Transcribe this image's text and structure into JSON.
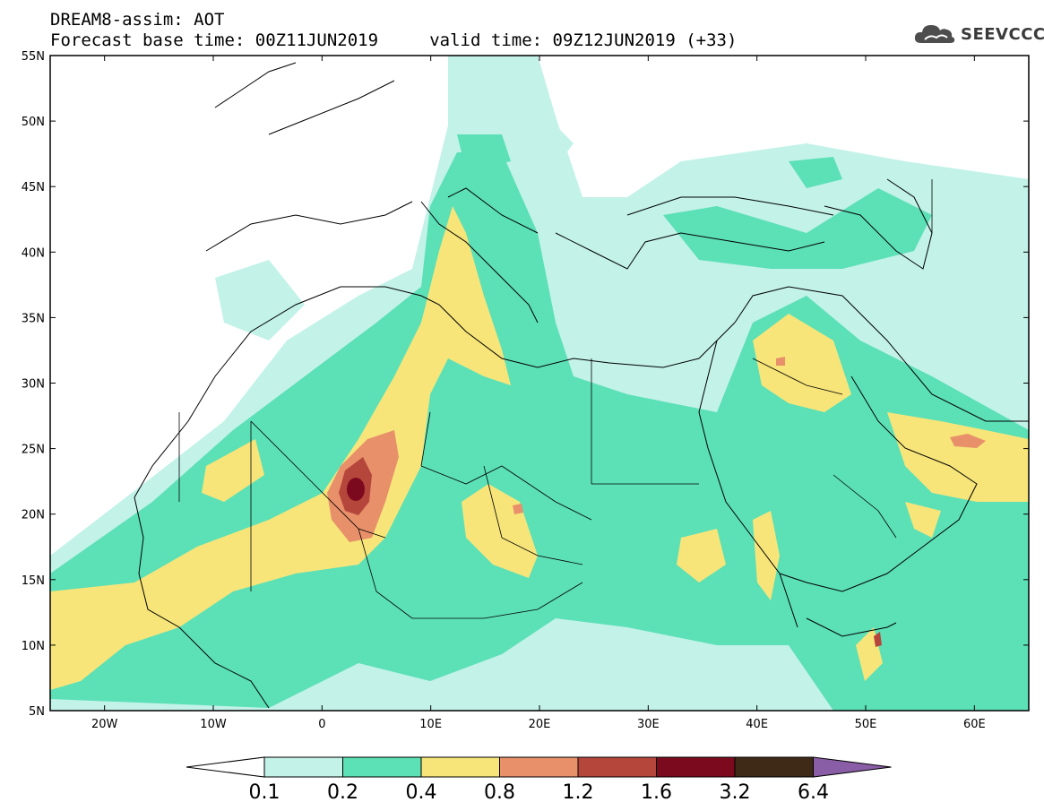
{
  "title": {
    "line1": "DREAM8-assim: AOT",
    "line2": "Forecast base time: 00Z11JUN2019     valid time: 09Z12JUN2019 (+33)"
  },
  "logo": {
    "text": "SEEVCCC",
    "icon": "cloud-icon"
  },
  "map": {
    "lon_range": [
      -25,
      65
    ],
    "lat_range": [
      5,
      55
    ],
    "lat_ticks": [
      {
        "value": 55,
        "label": "55N"
      },
      {
        "value": 50,
        "label": "50N"
      },
      {
        "value": 45,
        "label": "45N"
      },
      {
        "value": 40,
        "label": "40N"
      },
      {
        "value": 35,
        "label": "35N"
      },
      {
        "value": 30,
        "label": "30N"
      },
      {
        "value": 25,
        "label": "25N"
      },
      {
        "value": 20,
        "label": "20N"
      },
      {
        "value": 15,
        "label": "15N"
      },
      {
        "value": 10,
        "label": "10N"
      },
      {
        "value": 5,
        "label": "5N"
      }
    ],
    "lon_ticks": [
      {
        "value": -20,
        "label": "20W"
      },
      {
        "value": -10,
        "label": "10W"
      },
      {
        "value": 0,
        "label": "0"
      },
      {
        "value": 10,
        "label": "10E"
      },
      {
        "value": 20,
        "label": "20E"
      },
      {
        "value": 30,
        "label": "30E"
      },
      {
        "value": 40,
        "label": "40E"
      },
      {
        "value": 50,
        "label": "50E"
      },
      {
        "value": 60,
        "label": "60E"
      }
    ]
  },
  "colorbar": {
    "labels": [
      "0.1",
      "0.2",
      "0.4",
      "0.8",
      "1.2",
      "1.6",
      "3.2",
      "6.4"
    ],
    "colors": [
      "#ffffff",
      "#c2f2e8",
      "#5ce0b6",
      "#f7e57a",
      "#e8906a",
      "#b5463c",
      "#7c0a1e",
      "#3e2a17",
      "#8a5ea6"
    ]
  }
}
